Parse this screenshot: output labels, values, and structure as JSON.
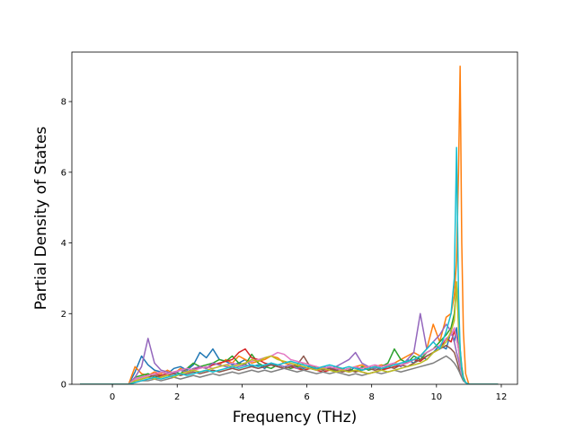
{
  "chart_data": {
    "type": "line",
    "title": "",
    "xlabel": "Frequency (THz)",
    "ylabel": "Partial Density of States",
    "xlim": [
      -1.25,
      12.5
    ],
    "ylim": [
      0,
      9.4
    ],
    "xticks": [
      0,
      2,
      4,
      6,
      8,
      10,
      12
    ],
    "yticks": [
      0,
      2,
      4,
      6,
      8
    ],
    "xtick_labels": [
      "0",
      "2",
      "4",
      "6",
      "8",
      "10",
      "12"
    ],
    "ytick_labels": [
      "0",
      "2",
      "4",
      "6",
      "8"
    ],
    "grid": false,
    "legend": "none",
    "colors": [
      "#1f77b4",
      "#ff7f0e",
      "#2ca02c",
      "#d62728",
      "#9467bd",
      "#8c564b",
      "#e377c2",
      "#7f7f7f",
      "#bcbd22",
      "#17becf"
    ],
    "x": [
      -1.0,
      0.5,
      0.7,
      0.9,
      1.1,
      1.3,
      1.5,
      1.7,
      1.9,
      2.1,
      2.3,
      2.5,
      2.7,
      2.9,
      3.1,
      3.3,
      3.5,
      3.7,
      3.9,
      4.1,
      4.3,
      4.5,
      4.7,
      4.9,
      5.1,
      5.3,
      5.5,
      5.7,
      5.9,
      6.1,
      6.3,
      6.5,
      6.7,
      6.9,
      7.1,
      7.3,
      7.5,
      7.7,
      7.9,
      8.1,
      8.3,
      8.5,
      8.7,
      8.9,
      9.1,
      9.3,
      9.5,
      9.7,
      9.9,
      10.1,
      10.3,
      10.45,
      10.55,
      10.62,
      10.68,
      10.73,
      10.78,
      10.83,
      10.9,
      11.0,
      11.9
    ],
    "series": [
      {
        "values": [
          0,
          0,
          0.35,
          0.8,
          0.55,
          0.4,
          0.35,
          0.3,
          0.45,
          0.5,
          0.4,
          0.55,
          0.9,
          0.75,
          1.0,
          0.7,
          0.65,
          0.55,
          0.6,
          0.7,
          0.5,
          0.55,
          0.45,
          0.6,
          0.5,
          0.45,
          0.5,
          0.55,
          0.45,
          0.5,
          0.4,
          0.45,
          0.5,
          0.4,
          0.45,
          0.35,
          0.5,
          0.4,
          0.45,
          0.5,
          0.4,
          0.5,
          0.6,
          0.5,
          0.7,
          0.6,
          0.8,
          0.7,
          0.9,
          1.1,
          1.0,
          1.5,
          1.2,
          1.6,
          1.0,
          0.8,
          0.4,
          0.2,
          0.05,
          0,
          0
        ]
      },
      {
        "values": [
          0,
          0,
          0.5,
          0.3,
          0.25,
          0.35,
          0.3,
          0.4,
          0.3,
          0.45,
          0.35,
          0.4,
          0.5,
          0.45,
          0.6,
          0.55,
          0.7,
          0.6,
          0.8,
          0.7,
          0.6,
          0.65,
          0.7,
          0.8,
          0.75,
          0.6,
          0.55,
          0.5,
          0.6,
          0.55,
          0.45,
          0.5,
          0.45,
          0.5,
          0.4,
          0.45,
          0.5,
          0.55,
          0.45,
          0.5,
          0.55,
          0.5,
          0.6,
          0.7,
          0.8,
          0.9,
          0.8,
          1.0,
          1.7,
          1.2,
          1.9,
          2.0,
          2.5,
          3.5,
          6.0,
          9.0,
          4.0,
          1.5,
          0.3,
          0,
          0
        ]
      },
      {
        "values": [
          0,
          0,
          0.2,
          0.25,
          0.3,
          0.2,
          0.25,
          0.3,
          0.35,
          0.3,
          0.45,
          0.6,
          0.5,
          0.55,
          0.6,
          0.7,
          0.65,
          0.8,
          0.6,
          0.55,
          0.85,
          0.6,
          0.5,
          0.45,
          0.55,
          0.5,
          0.45,
          0.5,
          0.4,
          0.45,
          0.5,
          0.4,
          0.45,
          0.35,
          0.4,
          0.45,
          0.35,
          0.5,
          0.4,
          0.45,
          0.5,
          0.6,
          1.0,
          0.7,
          0.6,
          0.8,
          0.7,
          0.9,
          1.0,
          1.2,
          1.4,
          1.6,
          2.0,
          2.8,
          1.8,
          1.0,
          0.5,
          0.2,
          0.05,
          0,
          0
        ]
      },
      {
        "values": [
          0,
          0,
          0.15,
          0.2,
          0.25,
          0.3,
          0.25,
          0.3,
          0.35,
          0.4,
          0.35,
          0.4,
          0.5,
          0.45,
          0.55,
          0.6,
          0.65,
          0.7,
          0.9,
          1.0,
          0.75,
          0.7,
          0.6,
          0.55,
          0.5,
          0.45,
          0.5,
          0.45,
          0.4,
          0.45,
          0.4,
          0.35,
          0.4,
          0.45,
          0.4,
          0.35,
          0.4,
          0.35,
          0.3,
          0.35,
          0.4,
          0.45,
          0.5,
          0.55,
          0.6,
          0.7,
          0.65,
          0.8,
          0.9,
          1.0,
          1.3,
          1.2,
          1.5,
          1.3,
          1.0,
          0.7,
          0.4,
          0.15,
          0.05,
          0,
          0
        ]
      },
      {
        "values": [
          0,
          0,
          0.2,
          0.5,
          1.3,
          0.6,
          0.4,
          0.35,
          0.3,
          0.4,
          0.35,
          0.45,
          0.5,
          0.45,
          0.6,
          0.55,
          0.5,
          0.45,
          0.5,
          0.55,
          0.5,
          0.45,
          0.5,
          0.6,
          0.55,
          0.5,
          0.55,
          0.45,
          0.5,
          0.45,
          0.4,
          0.5,
          0.45,
          0.5,
          0.6,
          0.7,
          0.9,
          0.6,
          0.5,
          0.45,
          0.5,
          0.55,
          0.6,
          0.5,
          0.7,
          0.9,
          2.0,
          1.0,
          1.2,
          1.4,
          1.7,
          1.5,
          1.2,
          0.9,
          0.7,
          0.5,
          0.3,
          0.1,
          0.05,
          0,
          0
        ]
      },
      {
        "values": [
          0,
          0,
          0.1,
          0.15,
          0.2,
          0.25,
          0.2,
          0.25,
          0.3,
          0.25,
          0.3,
          0.35,
          0.3,
          0.35,
          0.4,
          0.35,
          0.4,
          0.45,
          0.4,
          0.45,
          0.5,
          0.45,
          0.5,
          0.55,
          0.5,
          0.45,
          0.5,
          0.55,
          0.8,
          0.5,
          0.45,
          0.4,
          0.45,
          0.4,
          0.35,
          0.4,
          0.35,
          0.4,
          0.45,
          0.4,
          0.45,
          0.5,
          0.45,
          0.55,
          0.5,
          0.6,
          0.7,
          0.8,
          0.9,
          1.0,
          1.1,
          1.0,
          0.9,
          0.7,
          0.5,
          0.3,
          0.2,
          0.1,
          0.05,
          0,
          0
        ]
      },
      {
        "values": [
          0,
          0,
          0.15,
          0.2,
          0.25,
          0.3,
          0.35,
          0.3,
          0.35,
          0.4,
          0.45,
          0.4,
          0.45,
          0.5,
          0.45,
          0.5,
          0.55,
          0.6,
          0.55,
          0.6,
          0.65,
          0.7,
          0.75,
          0.8,
          0.9,
          0.85,
          0.7,
          0.65,
          0.6,
          0.55,
          0.5,
          0.45,
          0.5,
          0.45,
          0.4,
          0.45,
          0.5,
          0.45,
          0.5,
          0.55,
          0.5,
          0.55,
          0.6,
          0.55,
          0.6,
          0.7,
          0.8,
          0.9,
          1.0,
          1.1,
          1.3,
          1.4,
          1.6,
          1.3,
          1.0,
          0.6,
          0.3,
          0.1,
          0.05,
          0,
          0
        ]
      },
      {
        "values": [
          0,
          0,
          0.05,
          0.1,
          0.1,
          0.15,
          0.1,
          0.15,
          0.2,
          0.15,
          0.2,
          0.25,
          0.2,
          0.25,
          0.3,
          0.25,
          0.3,
          0.35,
          0.3,
          0.35,
          0.4,
          0.35,
          0.4,
          0.35,
          0.4,
          0.45,
          0.4,
          0.35,
          0.4,
          0.35,
          0.3,
          0.35,
          0.3,
          0.35,
          0.3,
          0.25,
          0.3,
          0.25,
          0.3,
          0.35,
          0.3,
          0.35,
          0.4,
          0.35,
          0.4,
          0.45,
          0.5,
          0.55,
          0.6,
          0.7,
          0.8,
          0.7,
          0.6,
          0.5,
          0.4,
          0.3,
          0.2,
          0.1,
          0.05,
          0,
          0
        ]
      },
      {
        "values": [
          0,
          0,
          0.1,
          0.15,
          0.2,
          0.15,
          0.2,
          0.25,
          0.2,
          0.3,
          0.35,
          0.4,
          0.35,
          0.4,
          0.45,
          0.5,
          0.55,
          0.5,
          0.55,
          0.6,
          0.7,
          0.65,
          0.75,
          0.8,
          0.7,
          0.65,
          0.6,
          0.55,
          0.5,
          0.45,
          0.4,
          0.45,
          0.4,
          0.35,
          0.4,
          0.35,
          0.4,
          0.35,
          0.3,
          0.35,
          0.4,
          0.35,
          0.4,
          0.45,
          0.5,
          0.55,
          0.6,
          0.7,
          0.9,
          1.0,
          1.2,
          1.5,
          1.8,
          2.9,
          1.6,
          0.8,
          0.4,
          0.15,
          0.05,
          0,
          0
        ]
      },
      {
        "values": [
          0,
          0,
          0.05,
          0.1,
          0.15,
          0.2,
          0.15,
          0.2,
          0.25,
          0.3,
          0.25,
          0.3,
          0.35,
          0.4,
          0.35,
          0.4,
          0.45,
          0.5,
          0.45,
          0.5,
          0.55,
          0.5,
          0.55,
          0.6,
          0.55,
          0.6,
          0.65,
          0.6,
          0.55,
          0.5,
          0.45,
          0.5,
          0.55,
          0.5,
          0.45,
          0.5,
          0.45,
          0.4,
          0.45,
          0.5,
          0.45,
          0.5,
          0.55,
          0.6,
          0.65,
          0.7,
          0.8,
          1.0,
          1.2,
          1.0,
          1.5,
          2.0,
          3.0,
          6.7,
          2.5,
          1.0,
          0.4,
          0.15,
          0.05,
          0,
          0
        ]
      }
    ]
  }
}
